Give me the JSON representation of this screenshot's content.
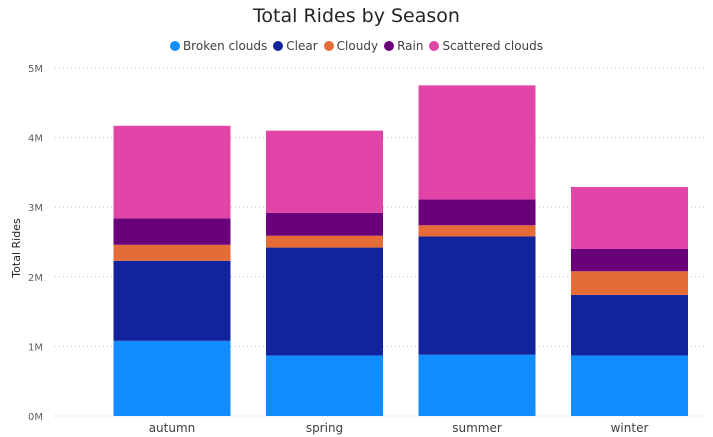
{
  "chart_data": {
    "type": "bar",
    "stacked": true,
    "title": "Total Rides by Season",
    "xlabel": "",
    "ylabel": "Total Rides",
    "ylim": [
      0,
      5000000
    ],
    "yticks": [
      "0M",
      "1M",
      "2M",
      "3M",
      "4M",
      "5M"
    ],
    "grid": true,
    "legend_position": "top-center",
    "categories": [
      "autumn",
      "spring",
      "summer",
      "winter"
    ],
    "series": [
      {
        "name": "Broken clouds",
        "color": "#118DFF",
        "values": [
          1080000,
          870000,
          880000,
          870000
        ]
      },
      {
        "name": "Clear",
        "color": "#12239E",
        "values": [
          1150000,
          1550000,
          1700000,
          870000
        ]
      },
      {
        "name": "Cloudy",
        "color": "#E66C37",
        "values": [
          230000,
          170000,
          160000,
          340000
        ]
      },
      {
        "name": "Rain",
        "color": "#6B007B",
        "values": [
          380000,
          330000,
          370000,
          320000
        ]
      },
      {
        "name": "Scattered clouds",
        "color": "#E044A7",
        "values": [
          1330000,
          1180000,
          1640000,
          890000
        ]
      }
    ]
  }
}
